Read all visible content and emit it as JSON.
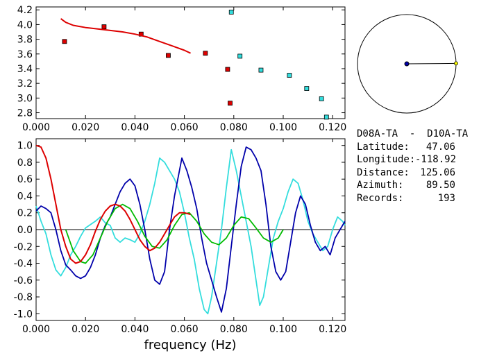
{
  "station_pair": "D08A-TA  -  D10A-TA",
  "info": [
    {
      "label": "Latitude:",
      "value": "47.06"
    },
    {
      "label": "Longitude:",
      "value": "-118.92"
    },
    {
      "label": "Distance:",
      "value": "125.06"
    },
    {
      "label": "Azimuth:",
      "value": "89.50"
    },
    {
      "label": "Records:",
      "value": "193"
    }
  ],
  "colors": {
    "red": "#dd0000",
    "cyan": "#33dddd",
    "blue": "#0000aa",
    "green": "#00bb00",
    "yellow": "#ffff00"
  },
  "chart_data": [
    {
      "type": "scatter",
      "xlim": [
        0.0,
        0.125
      ],
      "ylim": [
        2.72,
        4.24
      ],
      "xticks": [
        "0.000",
        "0.020",
        "0.040",
        "0.060",
        "0.080",
        "0.100",
        "0.120"
      ],
      "xtick_values": [
        0,
        0.02,
        0.04,
        0.06,
        0.08,
        0.1,
        0.12
      ],
      "yticks": [
        "2.8",
        "3.0",
        "3.2",
        "3.4",
        "3.6",
        "3.8",
        "4.0",
        "4.2"
      ],
      "ytick_values": [
        2.8,
        3.0,
        3.2,
        3.4,
        3.6,
        3.8,
        4.0,
        4.2
      ],
      "series": [
        {
          "color": "red",
          "kind": "points",
          "x": [
            0.0115,
            0.0275,
            0.0425,
            0.0535,
            0.0685,
            0.0775,
            0.0785
          ],
          "y": [
            3.77,
            3.97,
            3.87,
            3.58,
            3.61,
            3.39,
            2.93
          ]
        },
        {
          "color": "cyan",
          "kind": "points",
          "x": [
            0.079,
            0.0825,
            0.091,
            0.1025,
            0.1095,
            0.1155,
            0.1175
          ],
          "y": [
            4.17,
            3.57,
            3.38,
            3.31,
            3.13,
            2.99,
            2.74
          ]
        },
        {
          "color": "red",
          "kind": "line",
          "x": [
            0.01,
            0.012,
            0.015,
            0.02,
            0.025,
            0.03,
            0.035,
            0.04,
            0.045,
            0.05,
            0.055,
            0.06,
            0.0625
          ],
          "y": [
            4.08,
            4.03,
            3.99,
            3.96,
            3.94,
            3.92,
            3.9,
            3.87,
            3.83,
            3.77,
            3.71,
            3.65,
            3.61
          ]
        }
      ]
    },
    {
      "type": "line",
      "xlabel": "frequency (Hz)",
      "xlim": [
        0.0,
        0.125
      ],
      "ylim": [
        -1.08,
        1.08
      ],
      "xticks": [
        "0.000",
        "0.020",
        "0.040",
        "0.060",
        "0.080",
        "0.100",
        "0.120"
      ],
      "xtick_values": [
        0,
        0.02,
        0.04,
        0.06,
        0.08,
        0.1,
        0.12
      ],
      "yticks": [
        "1.0",
        "0.8",
        "0.6",
        "0.4",
        "0.2",
        "0.0",
        "-0.2",
        "-0.4",
        "-0.6",
        "-0.8",
        "-1.0"
      ],
      "ytick_values": [
        1.0,
        0.8,
        0.6,
        0.4,
        0.2,
        0.0,
        -0.2,
        -0.4,
        -0.6,
        -0.8,
        -1.0
      ],
      "series": [
        {
          "color": "cyan",
          "x": [
            0,
            0.002,
            0.004,
            0.006,
            0.008,
            0.01,
            0.012,
            0.014,
            0.016,
            0.018,
            0.02,
            0.022,
            0.024,
            0.026,
            0.028,
            0.03,
            0.032,
            0.034,
            0.036,
            0.038,
            0.04,
            0.042,
            0.044,
            0.046,
            0.048,
            0.05,
            0.052,
            0.054,
            0.056,
            0.058,
            0.06,
            0.062,
            0.064,
            0.066,
            0.068,
            0.0695,
            0.071,
            0.073,
            0.075,
            0.077,
            0.079,
            0.081,
            0.083,
            0.085,
            0.087,
            0.089,
            0.0905,
            0.092,
            0.094,
            0.096,
            0.098,
            0.1,
            0.102,
            0.104,
            0.106,
            0.108,
            0.11,
            0.112,
            0.114,
            0.116,
            0.118,
            0.12,
            0.122,
            0.124,
            0.125
          ],
          "y": [
            0.28,
            0.1,
            -0.05,
            -0.3,
            -0.48,
            -0.55,
            -0.45,
            -0.3,
            -0.2,
            -0.08,
            0.02,
            0.06,
            0.1,
            0.15,
            0.08,
            0.05,
            -0.1,
            -0.15,
            -0.1,
            -0.12,
            -0.15,
            -0.05,
            0.1,
            0.3,
            0.55,
            0.85,
            0.8,
            0.7,
            0.6,
            0.45,
            0.2,
            -0.1,
            -0.35,
            -0.7,
            -0.95,
            -1.0,
            -0.8,
            -0.4,
            0.0,
            0.5,
            0.95,
            0.7,
            0.4,
            0.1,
            -0.2,
            -0.6,
            -0.9,
            -0.8,
            -0.45,
            -0.1,
            0.1,
            0.25,
            0.45,
            0.6,
            0.55,
            0.35,
            0.1,
            -0.05,
            -0.15,
            -0.25,
            -0.2,
            0.0,
            0.15,
            0.1,
            0.05
          ]
        },
        {
          "color": "blue",
          "x": [
            0,
            0.002,
            0.004,
            0.006,
            0.008,
            0.01,
            0.012,
            0.014,
            0.016,
            0.018,
            0.02,
            0.022,
            0.024,
            0.026,
            0.028,
            0.03,
            0.032,
            0.034,
            0.036,
            0.038,
            0.04,
            0.042,
            0.044,
            0.046,
            0.048,
            0.05,
            0.052,
            0.054,
            0.056,
            0.058,
            0.059,
            0.061,
            0.063,
            0.065,
            0.067,
            0.069,
            0.071,
            0.073,
            0.075,
            0.077,
            0.079,
            0.081,
            0.083,
            0.085,
            0.087,
            0.089,
            0.091,
            0.093,
            0.095,
            0.097,
            0.099,
            0.101,
            0.103,
            0.105,
            0.107,
            0.109,
            0.111,
            0.113,
            0.115,
            0.117,
            0.119,
            0.121,
            0.123,
            0.125
          ],
          "y": [
            0.22,
            0.28,
            0.25,
            0.2,
            0.0,
            -0.25,
            -0.42,
            -0.48,
            -0.55,
            -0.58,
            -0.55,
            -0.45,
            -0.3,
            -0.1,
            0.05,
            0.15,
            0.3,
            0.45,
            0.55,
            0.6,
            0.52,
            0.3,
            0.0,
            -0.35,
            -0.6,
            -0.65,
            -0.5,
            0.0,
            0.4,
            0.7,
            0.85,
            0.7,
            0.5,
            0.25,
            -0.1,
            -0.4,
            -0.6,
            -0.8,
            -0.98,
            -0.7,
            -0.2,
            0.3,
            0.75,
            0.98,
            0.95,
            0.85,
            0.7,
            0.3,
            -0.2,
            -0.5,
            -0.6,
            -0.5,
            -0.15,
            0.2,
            0.4,
            0.3,
            0.05,
            -0.15,
            -0.25,
            -0.2,
            -0.3,
            -0.1,
            0.0,
            0.1
          ]
        },
        {
          "color": "green",
          "x": [
            0.012,
            0.015,
            0.018,
            0.02,
            0.023,
            0.026,
            0.029,
            0.032,
            0.035,
            0.038,
            0.041,
            0.044,
            0.047,
            0.05,
            0.053,
            0.056,
            0.059,
            0.062,
            0.065,
            0.068,
            0.071,
            0.074,
            0.077,
            0.08,
            0.083,
            0.086,
            0.089,
            0.092,
            0.095,
            0.098,
            0.1
          ],
          "y": [
            0.0,
            -0.25,
            -0.38,
            -0.4,
            -0.3,
            -0.1,
            0.1,
            0.25,
            0.3,
            0.25,
            0.1,
            -0.08,
            -0.2,
            -0.22,
            -0.12,
            0.05,
            0.18,
            0.2,
            0.1,
            -0.05,
            -0.15,
            -0.18,
            -0.1,
            0.05,
            0.15,
            0.13,
            0.02,
            -0.1,
            -0.15,
            -0.1,
            0.0
          ]
        },
        {
          "color": "red",
          "x": [
            0.0,
            0.002,
            0.004,
            0.006,
            0.008,
            0.01,
            0.012,
            0.014,
            0.016,
            0.018,
            0.02,
            0.022,
            0.024,
            0.026,
            0.028,
            0.03,
            0.032,
            0.034,
            0.036,
            0.038,
            0.04,
            0.042,
            0.044,
            0.046,
            0.048,
            0.05,
            0.052,
            0.054,
            0.056,
            0.058,
            0.06,
            0.0625
          ],
          "y": [
            1.0,
            0.98,
            0.85,
            0.6,
            0.3,
            0.0,
            -0.2,
            -0.35,
            -0.4,
            -0.38,
            -0.3,
            -0.18,
            -0.02,
            0.12,
            0.22,
            0.28,
            0.3,
            0.28,
            0.22,
            0.12,
            0.0,
            -0.12,
            -0.2,
            -0.25,
            -0.22,
            -0.15,
            -0.05,
            0.05,
            0.15,
            0.2,
            0.2,
            0.18
          ]
        }
      ]
    },
    {
      "type": "azimuth-dial",
      "azimuth_deg": 89.5
    }
  ]
}
